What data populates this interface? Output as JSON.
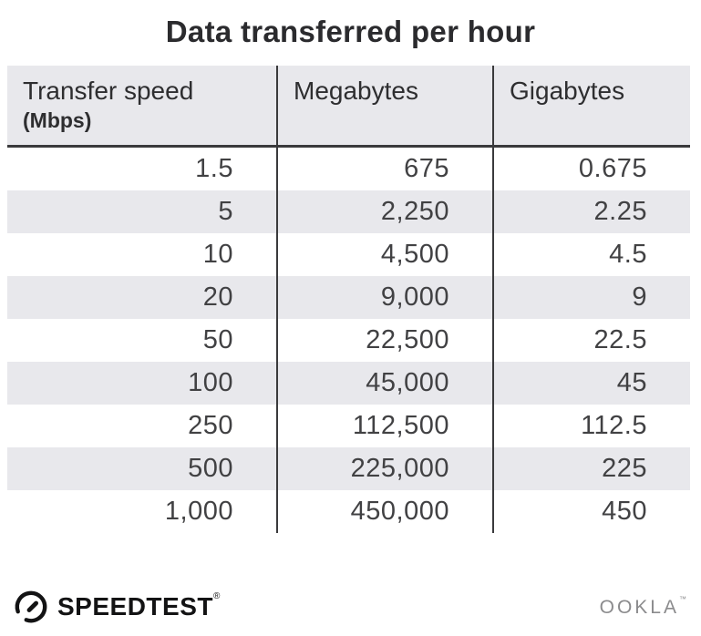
{
  "title": "Data transferred per hour",
  "table": {
    "headers": [
      {
        "label": "Transfer speed",
        "sub": "(Mbps)"
      },
      {
        "label": "Megabytes"
      },
      {
        "label": "Gigabytes"
      }
    ],
    "rows": [
      [
        "1.5",
        "675",
        "0.675"
      ],
      [
        "5",
        "2,250",
        "2.25"
      ],
      [
        "10",
        "4,500",
        "4.5"
      ],
      [
        "20",
        "9,000",
        "9"
      ],
      [
        "50",
        "22,500",
        "22.5"
      ],
      [
        "100",
        "45,000",
        "45"
      ],
      [
        "250",
        "112,500",
        "112.5"
      ],
      [
        "500",
        "225,000",
        "225"
      ],
      [
        "1,000",
        "450,000",
        "450"
      ]
    ]
  },
  "footer": {
    "speedtest_label": "SPEEDTEST",
    "speedtest_trademark": "®",
    "ookla_label": "OOKLA",
    "ookla_trademark": "™"
  },
  "colors": {
    "stripe": "#e8e8ec",
    "divider": "#3a3a3c",
    "title_text": "#2b2b2e",
    "cell_text": "#414143",
    "speedtest_logo": "#131314",
    "ookla_logo": "#8b8b8d"
  },
  "chart_data": {
    "type": "table",
    "title": "Data transferred per hour",
    "columns": [
      "Transfer speed (Mbps)",
      "Megabytes",
      "Gigabytes"
    ],
    "rows": [
      [
        1.5,
        675,
        0.675
      ],
      [
        5,
        2250,
        2.25
      ],
      [
        10,
        4500,
        4.5
      ],
      [
        20,
        9000,
        9
      ],
      [
        50,
        22500,
        22.5
      ],
      [
        100,
        45000,
        45
      ],
      [
        250,
        112500,
        112.5
      ],
      [
        500,
        225000,
        225
      ],
      [
        1000,
        450000,
        450
      ]
    ]
  }
}
